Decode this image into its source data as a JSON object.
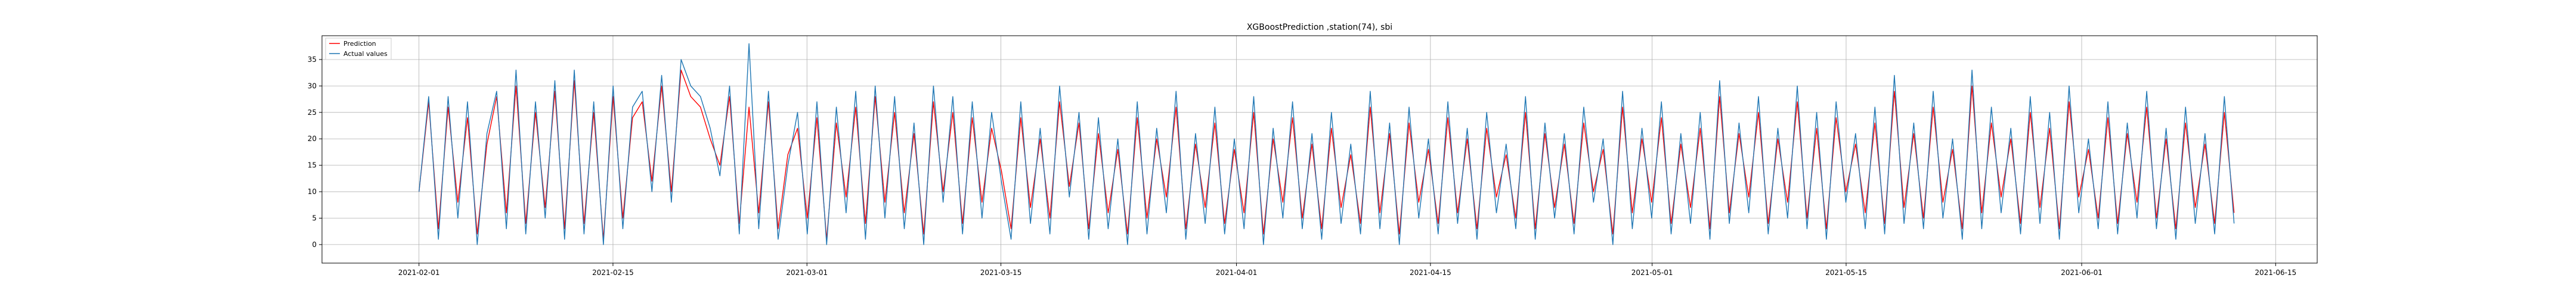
{
  "chart_data": {
    "type": "line",
    "title": "XGBoostPrediction ,station(74), sbi",
    "xlabel": "",
    "ylabel": "",
    "x_ticks": [
      "2021-02-01",
      "2021-02-15",
      "2021-03-01",
      "2021-03-15",
      "2021-04-01",
      "2021-04-15",
      "2021-05-01",
      "2021-05-15",
      "2021-06-01",
      "2021-06-15"
    ],
    "y_ticks": [
      0,
      5,
      10,
      15,
      20,
      25,
      30,
      35
    ],
    "xlim": [
      "2021-01-25",
      "2021-06-18"
    ],
    "ylim": [
      -3.5,
      39.5
    ],
    "data_range": [
      "2021-02-01",
      "2021-06-12"
    ],
    "grid": true,
    "legend_position": "upper-left",
    "series": [
      {
        "name": "Prediction",
        "color": "#ff0000",
        "values": [
          10,
          27,
          3,
          26,
          8,
          24,
          2,
          19,
          28,
          6,
          30,
          4,
          25,
          7,
          29,
          3,
          31,
          4,
          25,
          1,
          28,
          5,
          24,
          27,
          12,
          30,
          10,
          33,
          28,
          26,
          20,
          15,
          28,
          4,
          26,
          6,
          27,
          3,
          17,
          22,
          5,
          24,
          1,
          23,
          9,
          26,
          4,
          28,
          8,
          25,
          6,
          21,
          2,
          27,
          10,
          25,
          4,
          24,
          8,
          22,
          14,
          3,
          24,
          7,
          20,
          5,
          27,
          11,
          23,
          3,
          21,
          6,
          18,
          2,
          24,
          5,
          20,
          9,
          26,
          3,
          19,
          7,
          23,
          4,
          18,
          6,
          25,
          2,
          20,
          8,
          24,
          5,
          19,
          3,
          22,
          7,
          17,
          4,
          26,
          6,
          21,
          2,
          23,
          8,
          18,
          4,
          24,
          6,
          20,
          3,
          22,
          9,
          17,
          5,
          25,
          3,
          21,
          7,
          19,
          4,
          23,
          10,
          18,
          2,
          26,
          6,
          20,
          8,
          24,
          4,
          19,
          7,
          22,
          3,
          28,
          6,
          21,
          9,
          25,
          4,
          20,
          8,
          27,
          5,
          22,
          3,
          24,
          10,
          19,
          6,
          23,
          4,
          29,
          7,
          21,
          5,
          26,
          8,
          18,
          3,
          30,
          6,
          23,
          9,
          20,
          4,
          25,
          7,
          22,
          3,
          27,
          9,
          18,
          5,
          24,
          4,
          21,
          8,
          26,
          5,
          20,
          3,
          23,
          7,
          19,
          4,
          25,
          6
        ]
      },
      {
        "name": "Actual values",
        "color": "#1f77b4",
        "values": [
          10,
          28,
          1,
          28,
          5,
          27,
          0,
          21,
          29,
          3,
          33,
          2,
          27,
          5,
          31,
          1,
          33,
          2,
          27,
          0,
          30,
          3,
          26,
          29,
          10,
          32,
          8,
          35,
          30,
          28,
          22,
          13,
          30,
          2,
          38,
          3,
          29,
          1,
          15,
          25,
          2,
          27,
          0,
          26,
          6,
          29,
          1,
          30,
          5,
          28,
          3,
          23,
          0,
          30,
          8,
          28,
          2,
          27,
          5,
          25,
          12,
          1,
          27,
          4,
          22,
          2,
          30,
          9,
          25,
          1,
          24,
          3,
          20,
          0,
          27,
          2,
          22,
          6,
          29,
          1,
          21,
          4,
          26,
          2,
          20,
          3,
          28,
          0,
          22,
          5,
          27,
          3,
          21,
          1,
          25,
          4,
          19,
          2,
          29,
          3,
          23,
          0,
          26,
          5,
          20,
          2,
          27,
          4,
          22,
          1,
          25,
          6,
          19,
          3,
          28,
          1,
          23,
          5,
          21,
          2,
          26,
          8,
          20,
          0,
          29,
          3,
          22,
          5,
          27,
          2,
          21,
          4,
          25,
          1,
          31,
          4,
          23,
          6,
          28,
          2,
          22,
          5,
          30,
          3,
          25,
          1,
          27,
          8,
          21,
          3,
          26,
          2,
          32,
          4,
          23,
          3,
          29,
          5,
          20,
          1,
          33,
          3,
          26,
          6,
          22,
          2,
          28,
          4,
          25,
          1,
          30,
          6,
          20,
          3,
          27,
          2,
          23,
          5,
          29,
          3,
          22,
          1,
          26,
          4,
          21,
          2,
          28,
          4
        ]
      }
    ]
  }
}
